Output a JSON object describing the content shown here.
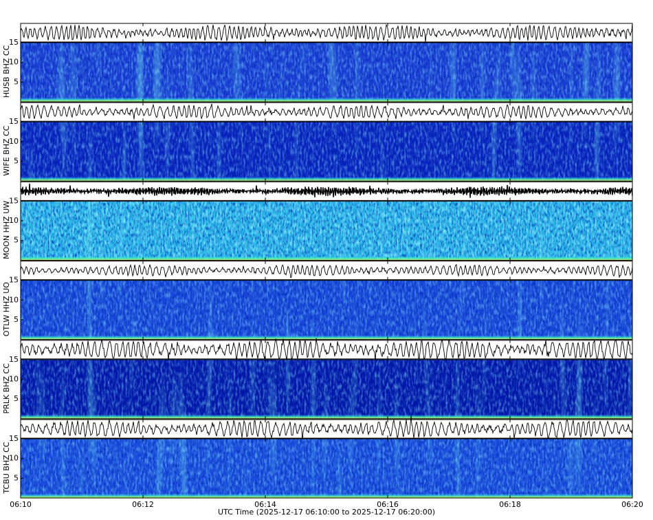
{
  "chart_data": {
    "type": "spectrogram",
    "x_label": "UTC Time (2025-12-17 06:10:00 to 2025-12-17 06:20:00)",
    "xlim": [
      10,
      20
    ],
    "xticks": [
      {
        "value": 10,
        "label": "06:10"
      },
      {
        "value": 12,
        "label": "06:12"
      },
      {
        "value": 14,
        "label": "06:14"
      },
      {
        "value": 16,
        "label": "06:16"
      },
      {
        "value": 18,
        "label": "06:18"
      },
      {
        "value": 20,
        "label": "06:20"
      }
    ],
    "panels": [
      {
        "label": "HUSB BHZ CC",
        "ylim": [
          0,
          15
        ],
        "yticks": [
          5,
          10,
          15
        ],
        "color": "#1c3ed6"
      },
      {
        "label": "WIFE BHZ CC",
        "ylim": [
          0,
          15
        ],
        "yticks": [
          5,
          10,
          15
        ],
        "color": "#0a22bf"
      },
      {
        "label": "MOON HHZ UW",
        "ylim": [
          0,
          15
        ],
        "yticks": [
          5,
          10,
          15
        ],
        "color": "#27b8e8"
      },
      {
        "label": "OTLW HHZ UO",
        "ylim": [
          0,
          15
        ],
        "yticks": [
          5,
          10,
          15
        ],
        "color": "#1a48dc"
      },
      {
        "label": "PRLK BHZ CC",
        "ylim": [
          0,
          15
        ],
        "yticks": [
          5,
          10,
          15
        ],
        "color": "#0214a8"
      },
      {
        "label": "TCBU BHZ CC",
        "ylim": [
          0,
          15
        ],
        "yticks": [
          5,
          10,
          15
        ],
        "color": "#1b4ee0"
      }
    ]
  }
}
